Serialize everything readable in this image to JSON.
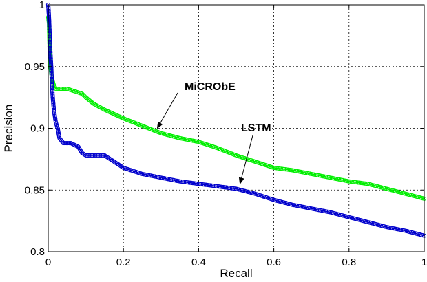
{
  "chart_data": {
    "type": "line",
    "title": "",
    "xlabel": "Recall",
    "ylabel": "Precision",
    "xlim": [
      0,
      1
    ],
    "ylim": [
      0.8,
      1
    ],
    "grid": true,
    "marker": "circle-open",
    "x_ticks": [
      0,
      0.2,
      0.4,
      0.6,
      0.8,
      1
    ],
    "y_ticks": [
      0.8,
      0.85,
      0.9,
      0.95,
      1
    ],
    "x_tick_labels": [
      "0",
      "0.2",
      "0.4",
      "0.6",
      "0.8",
      "1"
    ],
    "y_tick_labels": [
      "0.8",
      "0.85",
      "0.9",
      "0.95",
      "1"
    ],
    "series": [
      {
        "name": "MiCRObE",
        "color": "#00ee00",
        "x": [
          0.0,
          0.002,
          0.004,
          0.006,
          0.008,
          0.01,
          0.015,
          0.02,
          0.03,
          0.05,
          0.07,
          0.09,
          0.1,
          0.12,
          0.15,
          0.2,
          0.25,
          0.3,
          0.35,
          0.4,
          0.45,
          0.5,
          0.55,
          0.6,
          0.65,
          0.7,
          0.75,
          0.8,
          0.85,
          0.9,
          0.95,
          1.0
        ],
        "y": [
          0.99,
          0.985,
          0.96,
          0.95,
          0.945,
          0.94,
          0.935,
          0.932,
          0.932,
          0.932,
          0.93,
          0.928,
          0.925,
          0.92,
          0.915,
          0.908,
          0.902,
          0.896,
          0.892,
          0.889,
          0.884,
          0.878,
          0.873,
          0.868,
          0.866,
          0.863,
          0.86,
          0.857,
          0.855,
          0.851,
          0.847,
          0.843
        ]
      },
      {
        "name": "LSTM",
        "color": "#0000cc",
        "x": [
          0.0,
          0.002,
          0.004,
          0.006,
          0.008,
          0.01,
          0.012,
          0.015,
          0.02,
          0.025,
          0.03,
          0.04,
          0.06,
          0.08,
          0.09,
          0.1,
          0.12,
          0.15,
          0.18,
          0.2,
          0.25,
          0.3,
          0.35,
          0.4,
          0.45,
          0.5,
          0.55,
          0.6,
          0.65,
          0.7,
          0.75,
          0.8,
          0.85,
          0.9,
          0.95,
          1.0
        ],
        "y": [
          1.0,
          0.99,
          0.975,
          0.96,
          0.95,
          0.935,
          0.925,
          0.915,
          0.905,
          0.9,
          0.892,
          0.888,
          0.888,
          0.885,
          0.88,
          0.878,
          0.878,
          0.878,
          0.872,
          0.868,
          0.863,
          0.86,
          0.857,
          0.855,
          0.853,
          0.851,
          0.847,
          0.842,
          0.838,
          0.835,
          0.832,
          0.828,
          0.824,
          0.82,
          0.817,
          0.813
        ]
      }
    ],
    "annotations": [
      {
        "text": "MiCRObE",
        "target": [
          0.29,
          0.9
        ]
      },
      {
        "text": "LSTM",
        "target": [
          0.51,
          0.855
        ]
      }
    ]
  }
}
